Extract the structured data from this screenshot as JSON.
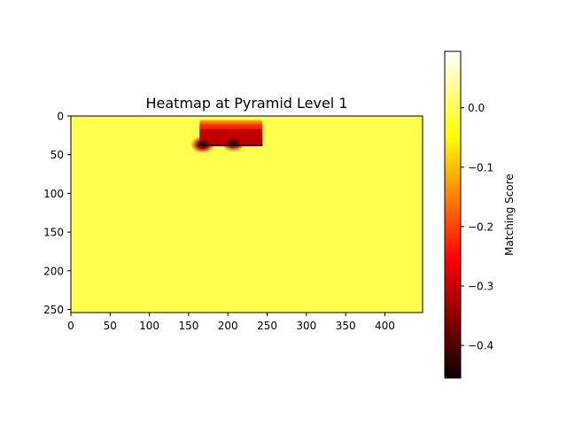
{
  "chart_data": {
    "type": "heatmap",
    "title": "Heatmap at Pyramid Level 1",
    "xlabel": "",
    "ylabel": "",
    "xlim": [
      0,
      448
    ],
    "ylim": [
      254,
      0
    ],
    "x_ticks": [
      0,
      50,
      100,
      150,
      200,
      250,
      300,
      350,
      400
    ],
    "y_ticks": [
      0,
      50,
      100,
      150,
      200,
      250
    ],
    "background_value": 0.0,
    "hot_region": {
      "x_range": [
        164,
        244
      ],
      "y_range": [
        5,
        39
      ],
      "min_value": -0.45,
      "minima": [
        {
          "x": 168,
          "y": 37,
          "value": -0.44
        },
        {
          "x": 207,
          "y": 35,
          "value": -0.45
        }
      ]
    },
    "colormap": "hot",
    "colorbar": {
      "label": "Matching Score",
      "range": [
        -0.455,
        0.095
      ],
      "ticks": [
        0.0,
        -0.1,
        -0.2,
        -0.3,
        -0.4
      ],
      "tick_labels": [
        "0.0",
        "−0.1",
        "−0.2",
        "−0.3",
        "−0.4"
      ]
    },
    "grid": false
  }
}
